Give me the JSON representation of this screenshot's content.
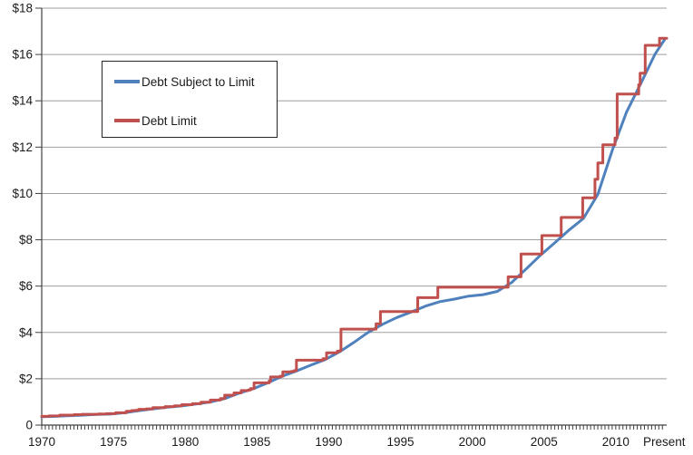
{
  "chart_data": {
    "type": "line",
    "title": "",
    "xlabel": "",
    "ylabel": "",
    "grid": true,
    "legend_position": "inset-top-left",
    "x_axis": {
      "range": [
        1970,
        2013.55
      ],
      "ticks": [
        {
          "label": "1970",
          "x": 1970
        },
        {
          "label": "1975",
          "x": 1975
        },
        {
          "label": "1980",
          "x": 1980
        },
        {
          "label": "1985",
          "x": 1985
        },
        {
          "label": "1990",
          "x": 1990
        },
        {
          "label": "1995",
          "x": 1995
        },
        {
          "label": "2000",
          "x": 2000
        },
        {
          "label": "2005",
          "x": 2005
        },
        {
          "label": "2010",
          "x": 2010
        },
        {
          "label": "Present",
          "x": 2013.38
        }
      ],
      "minor_tick_step_years": 0.25
    },
    "y_axis": {
      "range": [
        0,
        18
      ],
      "ticks": [
        {
          "label": "0",
          "y": 0
        },
        {
          "label": "$2",
          "y": 2
        },
        {
          "label": "$4",
          "y": 4
        },
        {
          "label": "$6",
          "y": 6
        },
        {
          "label": "$8",
          "y": 8
        },
        {
          "label": "$10",
          "y": 10
        },
        {
          "label": "$12",
          "y": 12
        },
        {
          "label": "$14",
          "y": 14
        },
        {
          "label": "$16",
          "y": 16
        },
        {
          "label": "$18",
          "y": 18
        }
      ]
    },
    "series": [
      {
        "name": "Debt Subject to Limit",
        "color": "#4F81BD",
        "style": "line",
        "points": [
          [
            1970.0,
            0.363
          ],
          [
            1970.75,
            0.373
          ],
          [
            1971.75,
            0.398
          ],
          [
            1972.75,
            0.427
          ],
          [
            1973.75,
            0.458
          ],
          [
            1974.75,
            0.475
          ],
          [
            1975.75,
            0.534
          ],
          [
            1976.75,
            0.621
          ],
          [
            1977.75,
            0.699
          ],
          [
            1978.75,
            0.772
          ],
          [
            1979.75,
            0.827
          ],
          [
            1980.75,
            0.908
          ],
          [
            1981.75,
            0.998
          ],
          [
            1982.75,
            1.142
          ],
          [
            1983.75,
            1.377
          ],
          [
            1984.75,
            1.572
          ],
          [
            1985.75,
            1.823
          ],
          [
            1986.75,
            2.111
          ],
          [
            1987.75,
            2.336
          ],
          [
            1988.75,
            2.587
          ],
          [
            1989.75,
            2.83
          ],
          [
            1990.75,
            3.161
          ],
          [
            1991.75,
            3.569
          ],
          [
            1992.75,
            4.003
          ],
          [
            1993.75,
            4.351
          ],
          [
            1994.75,
            4.644
          ],
          [
            1995.75,
            4.885
          ],
          [
            1996.75,
            5.137
          ],
          [
            1997.75,
            5.328
          ],
          [
            1998.75,
            5.439
          ],
          [
            1999.75,
            5.568
          ],
          [
            2000.75,
            5.629
          ],
          [
            2001.75,
            5.77
          ],
          [
            2002.75,
            6.161
          ],
          [
            2003.75,
            6.738
          ],
          [
            2004.75,
            7.333
          ],
          [
            2005.75,
            7.871
          ],
          [
            2006.75,
            8.42
          ],
          [
            2007.75,
            8.921
          ],
          [
            2008.75,
            9.96
          ],
          [
            2009.75,
            11.853
          ],
          [
            2010.75,
            13.511
          ],
          [
            2011.75,
            14.747
          ],
          [
            2012.75,
            16.027
          ],
          [
            2013.4,
            16.64
          ]
        ]
      },
      {
        "name": "Debt Limit",
        "color": "#C0504D",
        "style": "step",
        "points": [
          [
            1970.0,
            0.377
          ],
          [
            1970.5,
            0.395
          ],
          [
            1971.25,
            0.43
          ],
          [
            1972.25,
            0.45
          ],
          [
            1972.8,
            0.465
          ],
          [
            1973.95,
            0.476
          ],
          [
            1974.5,
            0.495
          ],
          [
            1975.15,
            0.531
          ],
          [
            1975.9,
            0.595
          ],
          [
            1976.25,
            0.627
          ],
          [
            1976.5,
            0.636
          ],
          [
            1976.75,
            0.682
          ],
          [
            1977.3,
            0.7
          ],
          [
            1977.75,
            0.752
          ],
          [
            1978.6,
            0.798
          ],
          [
            1979.25,
            0.83
          ],
          [
            1979.75,
            0.879
          ],
          [
            1980.5,
            0.925
          ],
          [
            1981.1,
            0.985
          ],
          [
            1981.75,
            1.08
          ],
          [
            1982.45,
            1.143
          ],
          [
            1982.75,
            1.29
          ],
          [
            1983.4,
            1.389
          ],
          [
            1983.9,
            1.49
          ],
          [
            1984.4,
            1.52
          ],
          [
            1984.55,
            1.573
          ],
          [
            1984.8,
            1.824
          ],
          [
            1985.85,
            1.904
          ],
          [
            1985.95,
            2.079
          ],
          [
            1986.6,
            2.111
          ],
          [
            1986.8,
            2.3
          ],
          [
            1987.4,
            2.32
          ],
          [
            1987.6,
            2.352
          ],
          [
            1987.75,
            2.8
          ],
          [
            1989.6,
            2.87
          ],
          [
            1989.85,
            3.123
          ],
          [
            1990.6,
            3.195
          ],
          [
            1990.8,
            3.23
          ],
          [
            1990.85,
            4.145
          ],
          [
            1993.3,
            4.37
          ],
          [
            1993.6,
            4.9
          ],
          [
            1996.2,
            5.5
          ],
          [
            1997.6,
            5.95
          ],
          [
            2002.5,
            6.4
          ],
          [
            2003.4,
            7.384
          ],
          [
            2004.85,
            8.184
          ],
          [
            2006.2,
            8.965
          ],
          [
            2007.7,
            9.815
          ],
          [
            2008.55,
            10.615
          ],
          [
            2008.75,
            11.315
          ],
          [
            2009.1,
            12.104
          ],
          [
            2009.95,
            12.394
          ],
          [
            2010.1,
            14.294
          ],
          [
            2011.6,
            14.694
          ],
          [
            2011.7,
            15.194
          ],
          [
            2012.05,
            16.394
          ],
          [
            2013.05,
            16.699
          ]
        ]
      }
    ],
    "style_colors": {
      "gridline": "#9E9E9E",
      "axis": "#404040",
      "tick_label": "#1a1a1a",
      "background": "#ffffff"
    }
  }
}
